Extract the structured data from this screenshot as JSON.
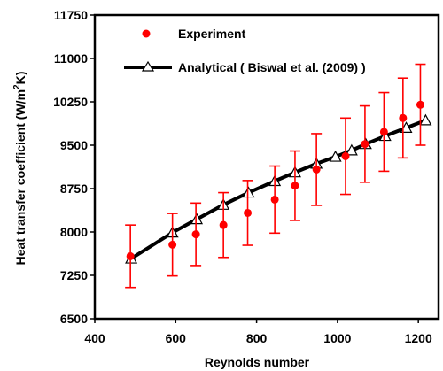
{
  "chart_data": {
    "type": "scatter",
    "title": "",
    "xlabel": "Reynolds number",
    "ylabel_main": "Heat transfer coefficient (W/m",
    "ylabel_sup": "2",
    "ylabel_tail": "K)",
    "xlim": [
      400,
      1250
    ],
    "ylim": [
      6500,
      11750
    ],
    "x_ticks": [
      400,
      600,
      800,
      1000,
      1200
    ],
    "x_tick_labels": [
      "400",
      "600",
      "800",
      "1000",
      "1200"
    ],
    "y_ticks": [
      6500,
      7250,
      8000,
      8750,
      9500,
      10250,
      11000,
      11750
    ],
    "y_tick_labels": [
      "6500",
      "7250",
      "8000",
      "8750",
      "9500",
      "10250",
      "11000",
      "11750"
    ],
    "grid": false,
    "legend_position": "top-left",
    "series": [
      {
        "name": "Experiment",
        "kind": "points-with-error-bars",
        "color": "#ff0000",
        "x": [
          488,
          592,
          650,
          718,
          778,
          845,
          895,
          948,
          1020,
          1068,
          1115,
          1162,
          1205
        ],
        "y": [
          7580,
          7780,
          7960,
          8120,
          8330,
          8560,
          8800,
          9080,
          9310,
          9520,
          9730,
          9970,
          10200
        ],
        "err": [
          540,
          540,
          540,
          560,
          560,
          580,
          600,
          620,
          660,
          660,
          680,
          690,
          700
        ]
      },
      {
        "name": "Analytical ( Biswal et al. (2009) )",
        "kind": "line-with-markers",
        "color": "#000000",
        "marker": "open-triangle",
        "x": [
          490,
          592,
          652,
          718,
          780,
          845,
          895,
          948,
          995,
          1035,
          1070,
          1118,
          1170,
          1218
        ],
        "y": [
          7540,
          7990,
          8220,
          8470,
          8680,
          8880,
          9030,
          9180,
          9300,
          9410,
          9520,
          9660,
          9800,
          9930
        ]
      }
    ]
  }
}
